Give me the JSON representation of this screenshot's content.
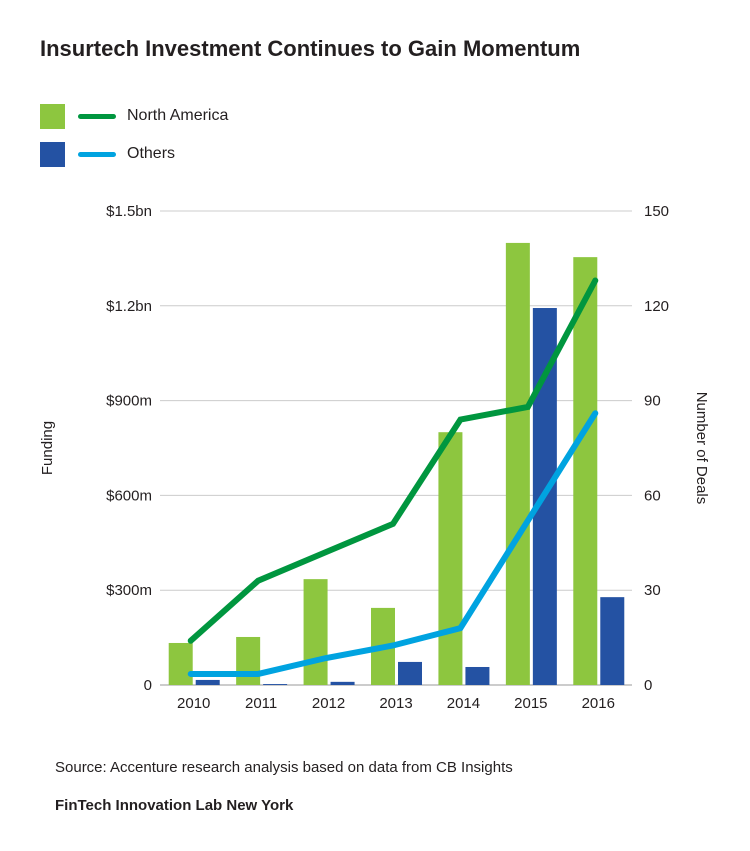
{
  "chart_data": {
    "type": "bar",
    "title": "Insurtech Investment Continues to Gain Momentum",
    "categories": [
      "2010",
      "2011",
      "2012",
      "2013",
      "2014",
      "2015",
      "2016"
    ],
    "bar_series": [
      {
        "name": "North America",
        "color": "#8dc63f",
        "values": [
          133,
          152,
          335,
          244,
          800,
          1399,
          1354
        ]
      },
      {
        "name": "Others",
        "color": "#2452a3",
        "values": [
          16,
          3,
          10,
          73,
          57,
          1193,
          278
        ]
      }
    ],
    "line_series": [
      {
        "name": "North America",
        "color": "#00963f",
        "values": [
          14,
          33,
          42,
          51,
          84,
          88,
          128
        ]
      },
      {
        "name": "Others",
        "color": "#00a3e0",
        "values": [
          3.5,
          3.5,
          8.5,
          12.5,
          18,
          52,
          86
        ]
      }
    ],
    "ylabel": "Funding",
    "y2label": "Number of Deals",
    "ylim": [
      0,
      1500
    ],
    "y2lim": [
      0,
      150
    ],
    "yticks": [
      "0",
      "$300m",
      "$600m",
      "$900m",
      "$1.2bn",
      "$1.5bn"
    ],
    "y2ticks": [
      "0",
      "30",
      "60",
      "90",
      "120",
      "150"
    ],
    "grid": true,
    "legend_placement": "top-left"
  },
  "legend": [
    {
      "label": "North America"
    },
    {
      "label": "Others"
    }
  ],
  "source": "Source: Accenture research analysis based on data from CB Insights",
  "footer": "FinTech Innovation Lab New York"
}
